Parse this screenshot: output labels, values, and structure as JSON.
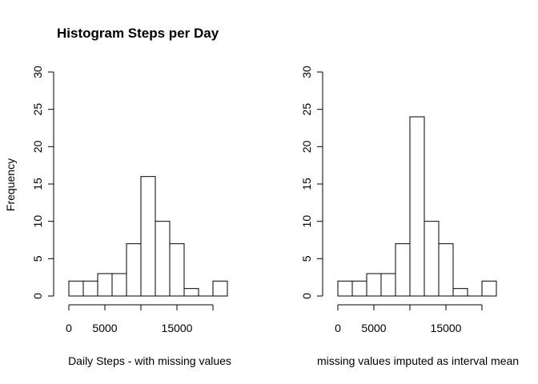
{
  "title": "Histogram Steps per Day",
  "ylabel": "Frequency",
  "chart_data": [
    {
      "type": "bar",
      "histogram": true,
      "title": "Histogram Steps per Day",
      "xlabel": "Daily Steps - with missing values",
      "ylabel": "Frequency",
      "bin_edges": [
        0,
        2000,
        4000,
        6000,
        8000,
        10000,
        12000,
        14000,
        16000,
        18000,
        20000,
        22000
      ],
      "values": [
        2,
        2,
        3,
        3,
        7,
        16,
        10,
        7,
        1,
        0,
        2
      ],
      "xticks": [
        0,
        5000,
        10000,
        15000,
        20000
      ],
      "xtick_labels": [
        "0",
        "5000",
        "",
        "15000",
        ""
      ],
      "yticks": [
        0,
        5,
        10,
        15,
        20,
        25,
        30
      ],
      "ylim": [
        0,
        30
      ],
      "grid": false
    },
    {
      "type": "bar",
      "histogram": true,
      "title": "",
      "xlabel": "missing values imputed as interval mean",
      "ylabel": "",
      "bin_edges": [
        0,
        2000,
        4000,
        6000,
        8000,
        10000,
        12000,
        14000,
        16000,
        18000,
        20000,
        22000
      ],
      "values": [
        2,
        2,
        3,
        3,
        7,
        24,
        10,
        7,
        1,
        0,
        2
      ],
      "xticks": [
        0,
        5000,
        10000,
        15000,
        20000
      ],
      "xtick_labels": [
        "0",
        "5000",
        "",
        "15000",
        ""
      ],
      "yticks": [
        0,
        5,
        10,
        15,
        20,
        25,
        30
      ],
      "ylim": [
        0,
        30
      ],
      "grid": false
    }
  ]
}
